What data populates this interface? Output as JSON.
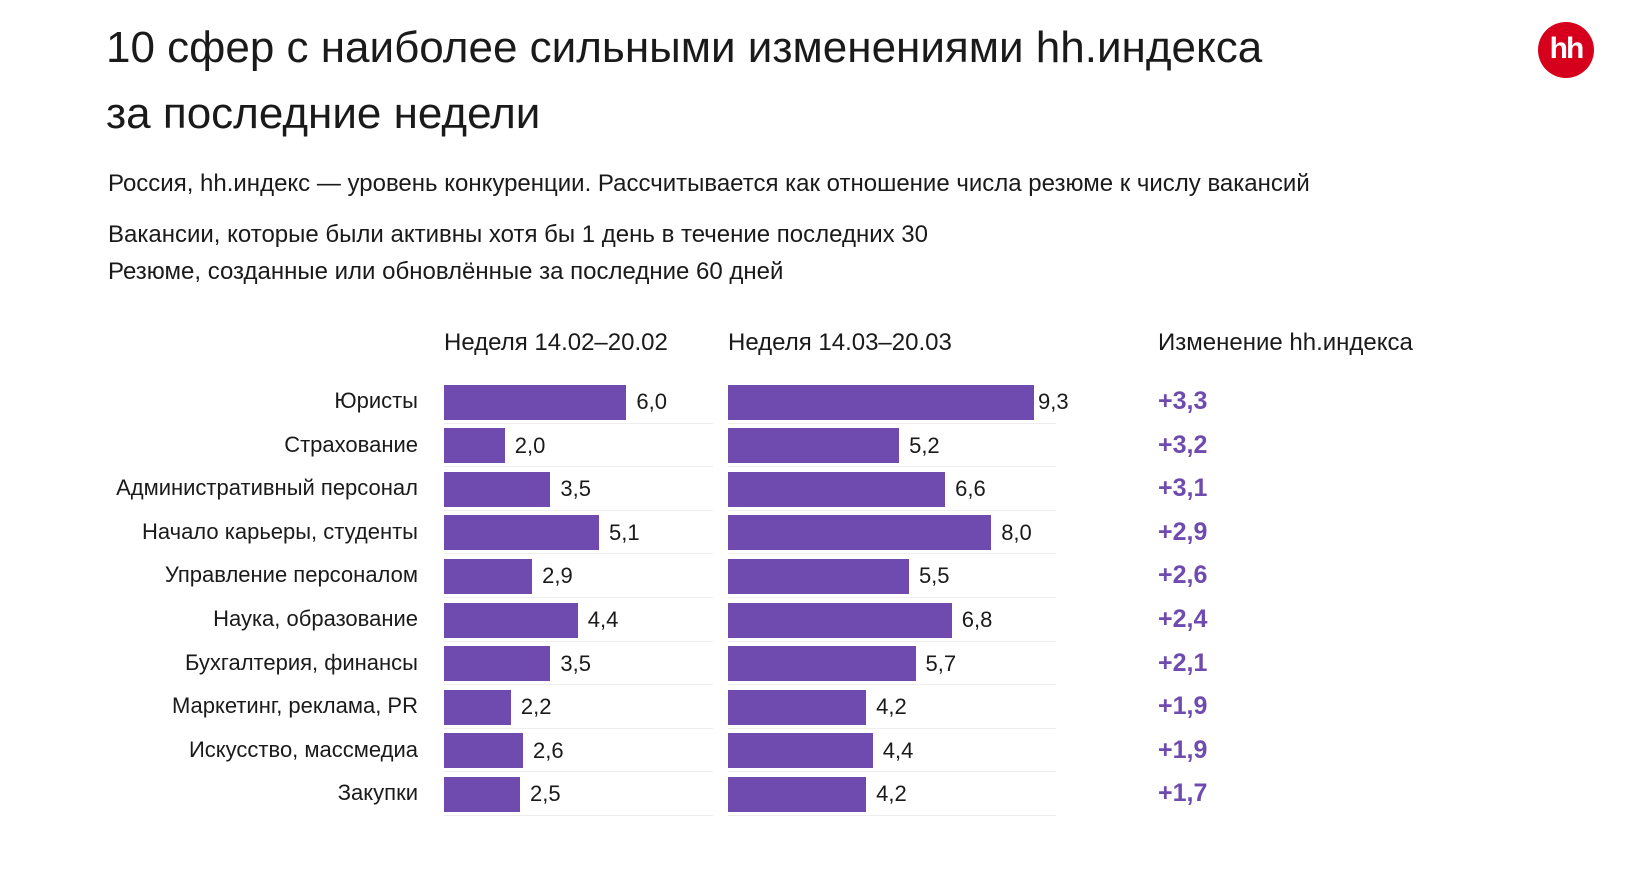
{
  "chart_data": {
    "type": "bar",
    "title": "10 сфер с наиболее сильными изменениями hh.индекса за последние недели",
    "title_lines": [
      "10 сфер с наиболее сильными изменениями hh.индекса",
      "за последние недели"
    ],
    "subtitle": "Россия, hh.индекс — уровень конкуренции. Рассчитывается как отношение числа резюме к числу вакансий",
    "notes": [
      "Вакансии, которые были активны хотя бы 1 день в течение последних 30",
      "Резюме, созданные или обновлённые за последние 60 дней"
    ],
    "categories": [
      "Юристы",
      "Страхование",
      "Административный персонал",
      "Начало карьеры, студенты",
      "Управление персоналом",
      "Наука, образование",
      "Бухгалтерия, финансы",
      "Маркетинг, реклама, PR",
      "Искусство, массмедиа",
      "Закупки"
    ],
    "series": [
      {
        "name": "Неделя 14.02–20.02",
        "values": [
          6.0,
          2.0,
          3.5,
          5.1,
          2.9,
          4.4,
          3.5,
          2.2,
          2.6,
          2.5
        ],
        "labels": [
          "6,0",
          "2,0",
          "3,5",
          "5,1",
          "2,9",
          "4,4",
          "3,5",
          "2,2",
          "2,6",
          "2,5"
        ]
      },
      {
        "name": "Неделя 14.03–20.03",
        "values": [
          9.3,
          5.2,
          6.6,
          8.0,
          5.5,
          6.8,
          5.7,
          4.2,
          4.4,
          4.2
        ],
        "labels": [
          "9,3",
          "5,2",
          "6,6",
          "8,0",
          "5,5",
          "6,8",
          "5,7",
          "4,2",
          "4,4",
          "4,2"
        ]
      }
    ],
    "change_header": "Изменение hh.индекса",
    "changes": [
      "+3,3",
      "+3,2",
      "+3,1",
      "+2,9",
      "+2,6",
      "+2,4",
      "+2,1",
      "+1,9",
      "+1,9",
      "+1,7"
    ],
    "bar_color": "#6f4bb0",
    "grid": false,
    "legend": "none"
  },
  "logo": "hh",
  "logo_color": "#d6001c"
}
